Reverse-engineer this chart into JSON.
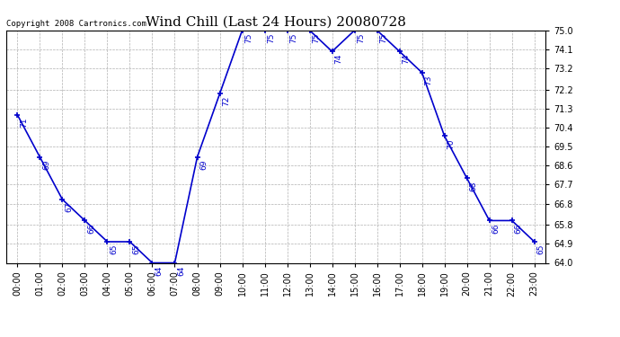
{
  "title": "Wind Chill (Last 24 Hours) 20080728",
  "copyright": "Copyright 2008 Cartronics.com",
  "line_color": "#0000CC",
  "marker": "+",
  "marker_color": "#0000CC",
  "background_color": "#ffffff",
  "grid_color": "#b0b0b0",
  "hours": [
    0,
    1,
    2,
    3,
    4,
    5,
    6,
    7,
    8,
    9,
    10,
    11,
    12,
    13,
    14,
    15,
    16,
    17,
    18,
    19,
    20,
    21,
    22,
    23
  ],
  "values": [
    71,
    69,
    67,
    66,
    65,
    65,
    64,
    64,
    69,
    72,
    75,
    75,
    75,
    75,
    74,
    75,
    75,
    74,
    73,
    70,
    68,
    66,
    66,
    65
  ],
  "ylim_min": 64.0,
  "ylim_max": 75.0,
  "yticks": [
    64.0,
    64.9,
    65.8,
    66.8,
    67.7,
    68.6,
    69.5,
    70.4,
    71.3,
    72.2,
    73.2,
    74.1,
    75.0
  ],
  "title_fontsize": 11,
  "label_fontsize": 7,
  "copyright_fontsize": 6.5,
  "annotation_fontsize": 6.5
}
